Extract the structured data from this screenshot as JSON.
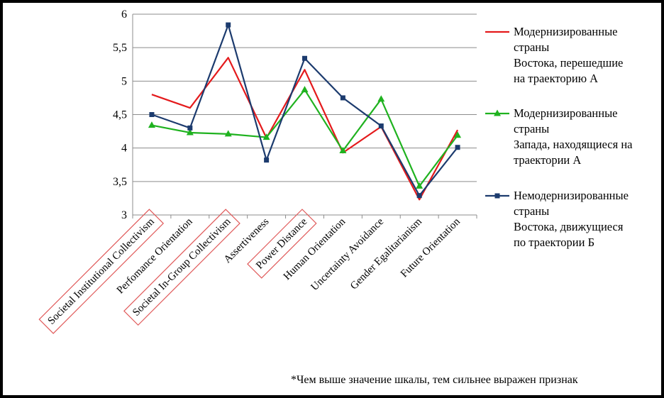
{
  "chart_data": {
    "type": "line",
    "categories": [
      "Societal Institutional Collectivism",
      "Perfomance Orientation",
      "Societal In-Group Collectivism",
      "Assertiveness",
      "Power Distance",
      "Human Orientation",
      "Uncertainty Avoidance",
      "Gender Egalitarianism",
      "Future Orientation"
    ],
    "highlighted_categories": [
      "Societal Institutional Collectivism",
      "Societal In-Group Collectivism",
      "Power Distance"
    ],
    "ylim": [
      3,
      6
    ],
    "yticks": [
      "3",
      "3,5",
      "4",
      "4,5",
      "5",
      "5,5",
      "6"
    ],
    "grid": true,
    "legend_position": "right",
    "series": [
      {
        "name": "Модернизированные страны Востока, перешедшие на траекторию А",
        "legend_lines": [
          "Модернизированные",
          "страны",
          "Востока, перешедшие",
          "на траекторию А"
        ],
        "color": "#e41a1c",
        "marker": "none",
        "values": [
          4.8,
          4.6,
          5.35,
          4.15,
          5.17,
          3.93,
          4.32,
          3.23,
          4.27
        ]
      },
      {
        "name": "Модернизированные страны Запада, находящиеся на траектории А",
        "legend_lines": [
          "Модернизированные",
          "страны",
          "Запада, находящиеся на",
          "траектории А"
        ],
        "color": "#1fb21f",
        "marker": "triangle",
        "values": [
          4.34,
          4.23,
          4.21,
          4.16,
          4.87,
          3.96,
          4.73,
          3.43,
          4.19
        ]
      },
      {
        "name": "Немодернизированные страны Востока, движущиеся по траектории Б",
        "legend_lines": [
          "Немодернизированные",
          "страны",
          "Востока, движущиеся",
          "по траектории Б"
        ],
        "color": "#1c3b6e",
        "marker": "square",
        "values": [
          4.5,
          4.3,
          5.84,
          3.82,
          5.34,
          4.75,
          4.33,
          3.29,
          4.01
        ]
      }
    ],
    "footnote": "*Чем выше значение шкалы, тем сильнее выражен признак"
  }
}
